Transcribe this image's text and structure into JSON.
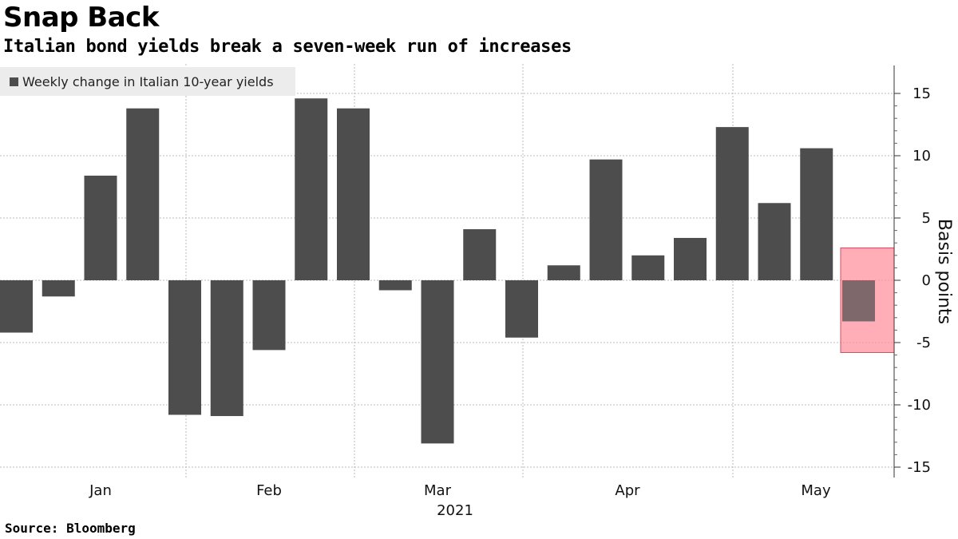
{
  "title": "Snap Back",
  "subtitle": "Italian bond yields break a seven-week run of increases",
  "source": "Source: Bloomberg",
  "colors": {
    "bar": "#4d4d4d",
    "highlight_fill": "#ff8a99",
    "highlight_stroke": "#d94a5a",
    "grid": "#bbbbbb"
  },
  "chart_data": {
    "type": "bar",
    "legend": "Weekly change in Italian 10-year yields",
    "ylabel": "Basis points",
    "ylim": [
      -15,
      17
    ],
    "yticks": [
      -15,
      -10,
      -5,
      0,
      5,
      10,
      15
    ],
    "grid": true,
    "legend_position": "top-left",
    "xlabel": "2021",
    "month_labels": [
      "Jan",
      "Feb",
      "Mar",
      "Apr",
      "May"
    ],
    "values": [
      -4.2,
      -1.3,
      8.4,
      13.8,
      -10.8,
      -10.9,
      -5.6,
      14.6,
      13.8,
      -0.8,
      -13.1,
      4.1,
      -4.6,
      1.2,
      9.7,
      2.0,
      3.4,
      12.3,
      6.2,
      10.6,
      -3.3
    ],
    "highlighted_index": 20,
    "highlight_range": [
      -5.8,
      2.6
    ]
  }
}
